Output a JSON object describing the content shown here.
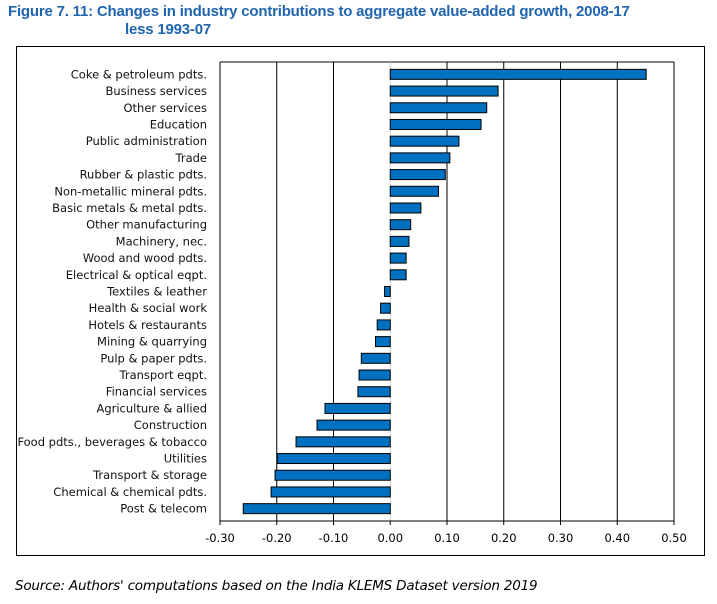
{
  "title_line1": "Figure 7. 11: Changes in industry contributions to aggregate value-added growth, 2008-17",
  "title_line2": "less 1993-07",
  "source": "Source: Authors' computations based on the India KLEMS Dataset version 2019",
  "chart_data": {
    "type": "bar",
    "orientation": "horizontal",
    "title": "Changes in industry contributions to aggregate value-added growth, 2008-17 less 1993-07",
    "xlabel": "",
    "ylabel": "",
    "xlim": [
      -0.3,
      0.5
    ],
    "xticks": [
      "-0.30",
      "-0.20",
      "-0.10",
      "0.00",
      "0.10",
      "0.20",
      "0.30",
      "0.40",
      "0.50"
    ],
    "grid": "vertical",
    "bar_color": "#0070c0",
    "categories": [
      "Coke & petroleum pdts.",
      "Business services",
      "Other services",
      "Education",
      "Public administration",
      "Trade",
      "Rubber & plastic pdts.",
      "Non-metallic mineral pdts.",
      "Basic metals & metal pdts.",
      "Other manufacturing",
      "Machinery, nec.",
      "Wood and wood pdts.",
      "Electrical & optical eqpt.",
      "Textiles & leather",
      "Health & social work",
      "Hotels & restaurants",
      "Mining & quarrying",
      "Pulp & paper pdts.",
      "Transport eqpt.",
      "Financial services",
      "Agriculture & allied",
      "Construction",
      "Food pdts., beverages & tobacco",
      "Utilities",
      "Transport & storage",
      "Chemical & chemical pdts.",
      "Post & telecom"
    ],
    "values": [
      0.451,
      0.19,
      0.17,
      0.16,
      0.121,
      0.105,
      0.097,
      0.085,
      0.054,
      0.036,
      0.033,
      0.028,
      0.028,
      -0.01,
      -0.017,
      -0.023,
      -0.026,
      -0.051,
      -0.055,
      -0.057,
      -0.115,
      -0.129,
      -0.166,
      -0.199,
      -0.203,
      -0.21,
      -0.259
    ]
  }
}
